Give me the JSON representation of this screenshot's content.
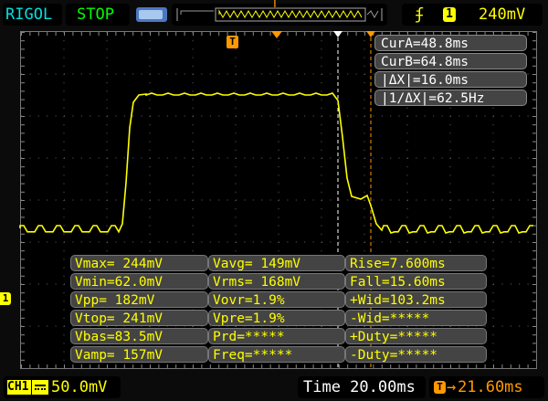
{
  "header": {
    "brand": "RIGOL",
    "run_state": "STOP",
    "trigger_marker": "T",
    "trigger_channel": "1",
    "trigger_level": "240mV"
  },
  "colors": {
    "ch1": "#ffff00",
    "brand": "#00e0e0",
    "run_state": "#00ff00",
    "trigger": "#ff9900",
    "cursor_a": "#ffffff",
    "cursor_b": "#ff9900"
  },
  "cursors": [
    "CurA=48.8ms",
    "CurB=64.8ms",
    "|ΔX|=16.0ms",
    "|1/ΔX|=62.5Hz"
  ],
  "measurements": [
    [
      "Vmax= 244mV",
      "Vavg= 149mV",
      "Rise=7.600ms"
    ],
    [
      "Vmin=62.0mV",
      "Vrms= 168mV",
      "Fall=15.60ms"
    ],
    [
      "Vpp= 182mV",
      "Vovr=1.9%",
      "+Wid=103.2ms"
    ],
    [
      "Vtop= 241mV",
      "Vpre=1.9%",
      "-Wid=*****"
    ],
    [
      "Vbas=83.5mV",
      "Prd=*****",
      "+Duty=*****"
    ],
    [
      "Vamp= 157mV",
      "Freq=*****",
      "-Duty=*****"
    ]
  ],
  "footer": {
    "channel": "CH1",
    "coupling_icon": "dc-coupling-icon",
    "volts_div": "50.0mV",
    "time_base": "Time 20.00ms",
    "trigger_offset": "21.60ms",
    "trigger_offset_prefix": "T→"
  },
  "channel_marker": "1"
}
